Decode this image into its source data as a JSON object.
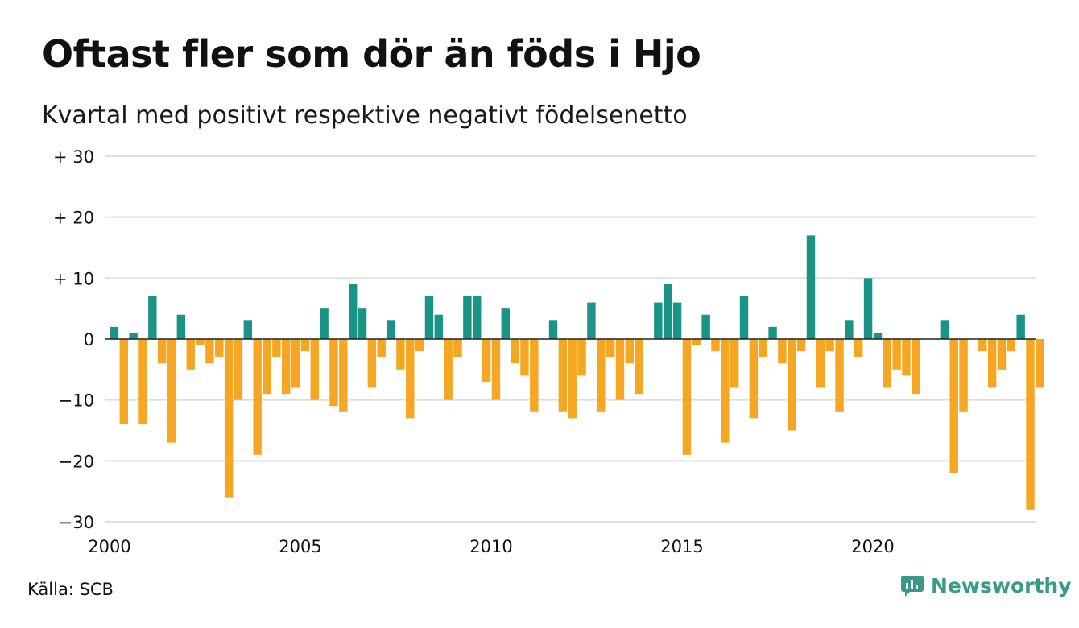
{
  "header": {
    "title": "Oftast fler som dör än föds i Hjo",
    "subtitle": "Kvartal med positivt respektive negativt födelsenetto"
  },
  "footer": {
    "source": "Källa: SCB",
    "brand": "Newsworthy"
  },
  "colors": {
    "positive": "#1a9485",
    "negative": "#f5a623",
    "grid": "#dddddd",
    "zero_line": "#222222",
    "brand": "#3a9a8a"
  },
  "icons": [
    "newsworthy-logo-icon"
  ],
  "chart_data": {
    "type": "bar",
    "title": "Oftast fler som dör än föds i Hjo",
    "subtitle": "Kvartal med positivt respektive negativt födelsenetto",
    "xlabel": "",
    "ylabel": "",
    "ylim": [
      -30,
      30
    ],
    "grid": true,
    "y_ticks": [
      {
        "value": 30,
        "label": "+ 30"
      },
      {
        "value": 20,
        "label": "+ 20"
      },
      {
        "value": 10,
        "label": "+ 10"
      },
      {
        "value": 0,
        "label": "0"
      },
      {
        "value": -10,
        "label": "−10"
      },
      {
        "value": -20,
        "label": "−20"
      },
      {
        "value": -30,
        "label": "−30"
      }
    ],
    "x_ticks": [
      {
        "value": 2000,
        "label": "2000"
      },
      {
        "value": 2005,
        "label": "2005"
      },
      {
        "value": 2010,
        "label": "2010"
      },
      {
        "value": 2015,
        "label": "2015"
      },
      {
        "value": 2020,
        "label": "2020"
      }
    ],
    "x_start": 2000,
    "periods_per_year": 4,
    "values": [
      2,
      -14,
      1,
      -14,
      7,
      -4,
      -17,
      4,
      -5,
      -1,
      -4,
      -3,
      -26,
      -10,
      3,
      -19,
      -9,
      -3,
      -9,
      -8,
      -2,
      -10,
      5,
      -11,
      -12,
      9,
      5,
      -8,
      -3,
      3,
      -5,
      -13,
      -2,
      7,
      4,
      -10,
      -3,
      7,
      7,
      -7,
      -10,
      5,
      -4,
      -6,
      -12,
      0,
      3,
      -12,
      -13,
      -6,
      6,
      -12,
      -3,
      -10,
      -4,
      -9,
      0,
      6,
      9,
      6,
      -19,
      -1,
      4,
      -2,
      -17,
      -8,
      7,
      -13,
      -3,
      2,
      -4,
      -15,
      -2,
      17,
      -8,
      -2,
      -12,
      3,
      -3,
      10,
      1,
      -8,
      -5,
      -6,
      -9,
      0,
      0,
      3,
      -22,
      -12,
      0,
      -2,
      -8,
      -5,
      -2,
      4,
      -28,
      -8
    ]
  }
}
